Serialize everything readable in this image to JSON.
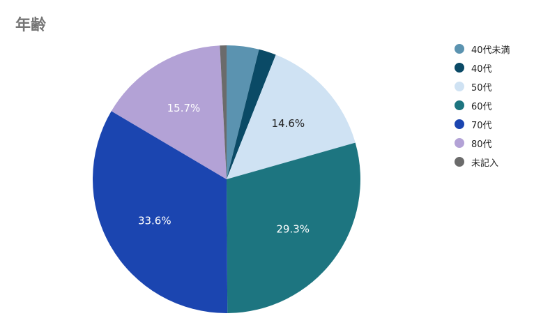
{
  "chart_data": {
    "type": "pie",
    "title": "年齢",
    "legend_position": "right",
    "categories": [
      "40代未満",
      "40代",
      "50代",
      "60代",
      "70代",
      "80代",
      "未記入"
    ],
    "values": [
      3.9,
      2.1,
      14.6,
      29.3,
      33.6,
      15.7,
      0.8
    ],
    "colors": [
      "#5b93b0",
      "#0a4a66",
      "#cfe2f3",
      "#1d7580",
      "#1b45b0",
      "#b3a2d6",
      "#6b6b6b"
    ],
    "data_labels": [
      "",
      "",
      "14.6%",
      "29.3%",
      "33.6%",
      "15.7%",
      ""
    ],
    "label_colors": [
      "#ffffff",
      "#ffffff",
      "#222222",
      "#ffffff",
      "#ffffff",
      "#ffffff",
      "#ffffff"
    ]
  }
}
